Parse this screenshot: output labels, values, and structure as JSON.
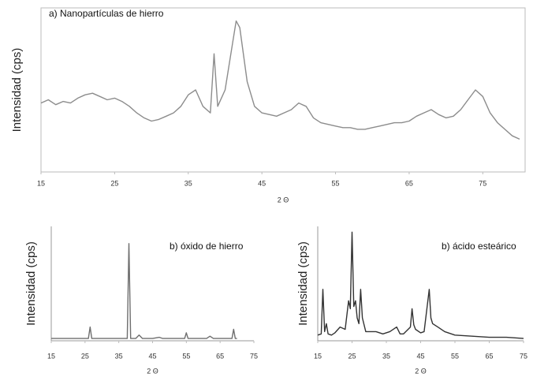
{
  "chart_data": [
    {
      "type": "line",
      "title": "a) Nanopartículas de hierro",
      "x_label": "2 Θ",
      "y_label": "Intensidad (cps)",
      "color": "#8c8c8c",
      "xlim": [
        15,
        80
      ],
      "ylim": [
        0,
        100
      ],
      "xticks": [
        15,
        25,
        35,
        45,
        55,
        65,
        75
      ],
      "x": [
        15,
        16,
        17,
        18,
        19,
        20,
        21,
        22,
        23,
        24,
        25,
        26,
        27,
        28,
        29,
        30,
        31,
        32,
        33,
        34,
        35,
        36,
        37,
        38,
        38.5,
        39,
        40,
        41,
        41.5,
        42,
        43,
        44,
        45,
        46,
        47,
        48,
        49,
        50,
        51,
        52,
        53,
        54,
        55,
        56,
        57,
        58,
        59,
        60,
        61,
        62,
        63,
        64,
        65,
        66,
        67,
        68,
        69,
        70,
        71,
        72,
        73,
        74,
        75,
        76,
        77,
        78,
        79,
        80
      ],
      "values": [
        42,
        44,
        41,
        43,
        42,
        45,
        47,
        48,
        46,
        44,
        45,
        43,
        40,
        36,
        33,
        31,
        32,
        34,
        36,
        40,
        47,
        50,
        40,
        36,
        72,
        40,
        50,
        78,
        92,
        88,
        55,
        40,
        36,
        35,
        34,
        36,
        38,
        42,
        40,
        33,
        30,
        29,
        28,
        27,
        27,
        26,
        26,
        27,
        28,
        29,
        30,
        30,
        31,
        34,
        36,
        38,
        35,
        33,
        34,
        38,
        44,
        50,
        46,
        36,
        30,
        26,
        22,
        20
      ]
    },
    {
      "type": "line",
      "title": "b) óxido de hierro",
      "x_label": "2 Θ",
      "y_label": "Intensidad (cps)",
      "color": "#6e6e6e",
      "xlim": [
        15,
        75
      ],
      "ylim": [
        0,
        100
      ],
      "xticks": [
        15,
        25,
        35,
        45,
        55,
        65,
        75
      ],
      "x": [
        15,
        20,
        25,
        26,
        26.5,
        27,
        30,
        35,
        37.5,
        38,
        38.5,
        40,
        41,
        42,
        45,
        47,
        48,
        50,
        54.5,
        55,
        55.5,
        58,
        61,
        62,
        63,
        66,
        68.5,
        69,
        69.5,
        70
      ],
      "values": [
        2,
        2,
        2,
        2,
        12,
        2,
        2,
        2,
        2,
        85,
        2,
        2,
        5,
        2,
        2,
        3,
        2,
        2,
        2,
        7,
        2,
        2,
        2,
        4,
        2,
        2,
        2,
        10,
        2,
        2
      ]
    },
    {
      "type": "line",
      "title": "b) ácido esteárico",
      "x_label": "2 Θ",
      "y_label": "Intensidad (cps)",
      "color": "#333333",
      "xlim": [
        15,
        75
      ],
      "ylim": [
        0,
        100
      ],
      "xticks": [
        15,
        25,
        35,
        45,
        55,
        65,
        75
      ],
      "x": [
        15,
        16,
        16.5,
        17,
        17.5,
        18,
        19,
        20,
        21.5,
        23,
        24,
        24.5,
        25,
        25.5,
        26,
        26.5,
        27,
        27.5,
        28,
        29,
        30,
        32,
        34,
        36,
        38,
        39,
        40,
        42,
        42.5,
        43,
        43.5,
        45,
        46,
        47.5,
        48,
        48.5,
        50,
        52,
        55,
        60,
        65,
        70,
        75
      ],
      "values": [
        5,
        6,
        45,
        8,
        15,
        6,
        5,
        7,
        12,
        10,
        35,
        28,
        95,
        30,
        35,
        20,
        15,
        45,
        20,
        8,
        8,
        8,
        6,
        8,
        12,
        6,
        6,
        12,
        28,
        14,
        10,
        7,
        8,
        45,
        20,
        15,
        12,
        8,
        5,
        4,
        3,
        3,
        2
      ]
    }
  ]
}
